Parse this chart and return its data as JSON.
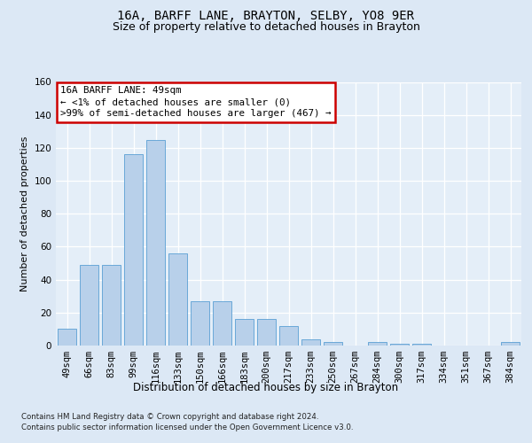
{
  "title1": "16A, BARFF LANE, BRAYTON, SELBY, YO8 9ER",
  "title2": "Size of property relative to detached houses in Brayton",
  "xlabel": "Distribution of detached houses by size in Brayton",
  "ylabel": "Number of detached properties",
  "categories": [
    "49sqm",
    "66sqm",
    "83sqm",
    "99sqm",
    "116sqm",
    "133sqm",
    "150sqm",
    "166sqm",
    "183sqm",
    "200sqm",
    "217sqm",
    "233sqm",
    "250sqm",
    "267sqm",
    "284sqm",
    "300sqm",
    "317sqm",
    "334sqm",
    "351sqm",
    "367sqm",
    "384sqm"
  ],
  "values": [
    10,
    49,
    49,
    116,
    125,
    56,
    27,
    27,
    16,
    16,
    12,
    4,
    2,
    0,
    2,
    1,
    1,
    0,
    0,
    0,
    2
  ],
  "bar_color": "#b8d0ea",
  "bar_edge_color": "#5a9fd4",
  "annotation_title": "16A BARFF LANE: 49sqm",
  "annotation_line1": "← <1% of detached houses are smaller (0)",
  "annotation_line2": ">99% of semi-detached houses are larger (467) →",
  "annotation_box_color": "#ffffff",
  "annotation_box_edge": "#cc0000",
  "footer1": "Contains HM Land Registry data © Crown copyright and database right 2024.",
  "footer2": "Contains public sector information licensed under the Open Government Licence v3.0.",
  "ylim": [
    0,
    160
  ],
  "yticks": [
    0,
    20,
    40,
    60,
    80,
    100,
    120,
    140,
    160
  ],
  "bg_color": "#dce8f5",
  "plot_bg_color": "#e4eef8",
  "grid_color": "#ffffff",
  "title1_fontsize": 10,
  "title2_fontsize": 9,
  "xlabel_fontsize": 8.5,
  "ylabel_fontsize": 8,
  "tick_fontsize": 7.5,
  "footer_fontsize": 6.2,
  "ann_fontsize": 7.8
}
